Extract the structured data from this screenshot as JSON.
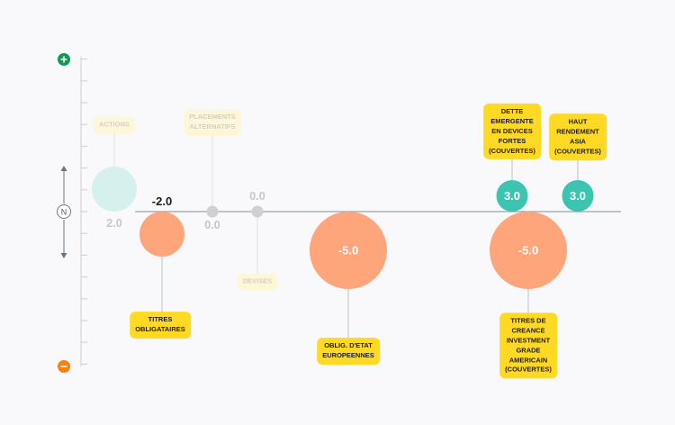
{
  "chart_data": {
    "type": "bubble-scale",
    "scale": {
      "top_icon": "plus-icon",
      "bottom_icon": "minus-icon",
      "neutral_label": "N"
    },
    "series": [
      {
        "label": "ACTIONS",
        "value": 2.0,
        "value_text": "2.0",
        "faded": true,
        "color": "#d6f0ee"
      },
      {
        "label": "TITRES\nOBLIGATAIRES",
        "value": -2.0,
        "value_text": "-2.0",
        "faded": false,
        "color": "#ffa57c"
      },
      {
        "label": "PLACEMENTS\nALTERNATIFS",
        "value": 0.0,
        "value_text": "0.0",
        "faded": true,
        "color": "#cfd0d4"
      },
      {
        "label": "DEVISES",
        "value": 0.0,
        "value_text": "0.0",
        "faded": true,
        "color": "#cfd0d4"
      },
      {
        "label": "OBLIG. D'ETAT\nEUROPEENNES",
        "value": -5.0,
        "value_text": "-5.0",
        "faded": false,
        "color": "#ffa57c"
      },
      {
        "label": "DETTE\nEMERGENTE\nEN DEVICES\nFORTES\n(COUVERTES)",
        "value": 3.0,
        "value_text": "3.0",
        "faded": false,
        "color": "#3cc4b0"
      },
      {
        "label": "TITRES DE\nCREANCE\nINVESTMENT\nGRADE\nAMERICAIN\n(COUVERTES)",
        "value": -5.0,
        "value_text": "-5.0",
        "faded": false,
        "color": "#ffa57c"
      },
      {
        "label": "HAUT\nRENDEMENT\nASIA\n(COUVERTES)",
        "value": 3.0,
        "value_text": "3.0",
        "faded": false,
        "color": "#3cc4b0"
      }
    ],
    "colors": {
      "plus": "#119a52",
      "minus": "#f5820f",
      "label_bg": "#ffd924",
      "label_bg_faded": "#fdf6d8",
      "axis": "#9aa3a8"
    }
  }
}
